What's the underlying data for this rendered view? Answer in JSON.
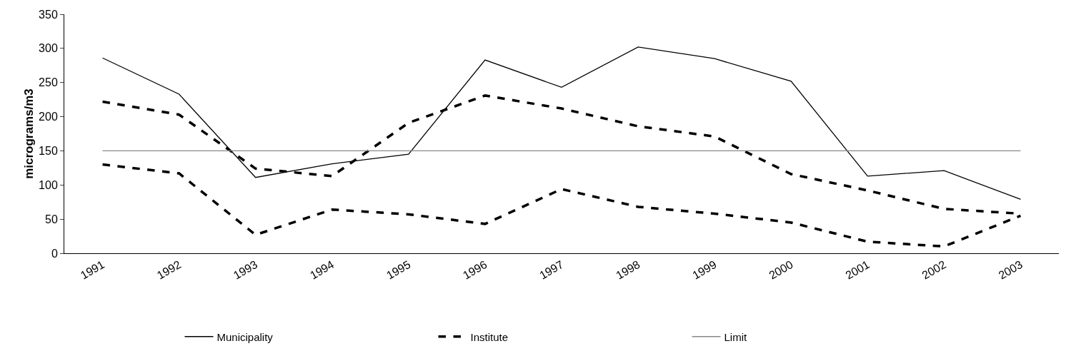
{
  "chart_data": {
    "type": "line",
    "ylabel": "micrograms/m3",
    "categories": [
      "1991",
      "1992",
      "1993",
      "1994",
      "1995",
      "1996",
      "1997",
      "1998",
      "1999",
      "2000",
      "2001",
      "2002",
      "2003"
    ],
    "series": [
      {
        "name": "Municipality",
        "color": "#000000",
        "line_style": "solid",
        "values": [
          286,
          233,
          111,
          131,
          145,
          283,
          243,
          302,
          285,
          252,
          113,
          121,
          79
        ]
      },
      {
        "name": "Institute",
        "color": "#000000",
        "line_style": "dashed",
        "values": [
          130,
          117,
          27,
          64,
          57,
          43,
          94,
          68,
          58,
          45,
          17,
          10,
          55
        ]
      },
      {
        "color": "#000000",
        "line_style": "dashed",
        "values": [
          222,
          203,
          124,
          113,
          191,
          231,
          212,
          186,
          171,
          116,
          92,
          65,
          58
        ]
      },
      {
        "name": "Limit",
        "color": "#888888",
        "line_style": "solid",
        "values": [
          150,
          150,
          150,
          150,
          150,
          150,
          150,
          150,
          150,
          150,
          150,
          150,
          150
        ]
      }
    ],
    "ylim": [
      0,
      350
    ],
    "yticks": [
      0,
      50,
      100,
      150,
      200,
      250,
      300,
      350
    ],
    "grid": false,
    "legend": "bottom",
    "marker": "none"
  }
}
